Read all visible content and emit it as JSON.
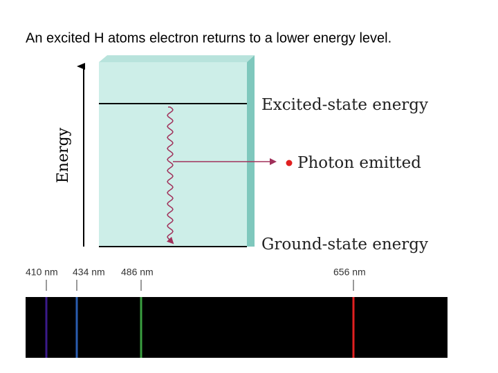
{
  "title": "An excited H atoms electron returns to a lower energy level.",
  "diagram": {
    "axis_label": "Energy",
    "excited_label": "Excited-state energy",
    "photon_label": "Photon emitted",
    "ground_label": "Ground-state energy"
  },
  "spectrum": {
    "lines": [
      {
        "label": "410 nm"
      },
      {
        "label": "434 nm"
      },
      {
        "label": "486 nm"
      },
      {
        "label": "656 nm"
      }
    ]
  }
}
